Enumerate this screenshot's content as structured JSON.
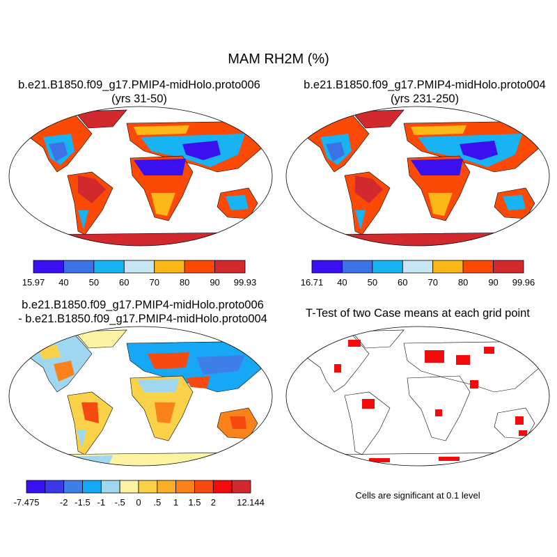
{
  "title": "MAM RH2M (%)",
  "panels": {
    "p1": {
      "title_line1": "b.e21.B1850.f09_g17.PMIP4-midHolo.proto006",
      "title_line2": "(yrs 31-50)"
    },
    "p2": {
      "title_line1": "b.e21.B1850.f09_g17.PMIP4-midHolo.proto004",
      "title_line2": "(yrs 231-250)"
    },
    "p3": {
      "title_line1": "b.e21.B1850.f09_g17.PMIP4-midHolo.proto006",
      "title_line2": "- b.e21.B1850.f09_g17.PMIP4-midHolo.proto004"
    },
    "p4": {
      "title_line1": "T-Test of two Case means at each grid point",
      "note": "Cells are significant at 0.1 level"
    }
  },
  "colorbars": {
    "cb1": {
      "colors": [
        "#3a0ff0",
        "#3c72e6",
        "#17b3f2",
        "#c6e6f6",
        "#fbb718",
        "#fa4a06",
        "#d1292e"
      ],
      "labels": [
        "15.97",
        "40",
        "50",
        "60",
        "70",
        "80",
        "90",
        "99.93"
      ]
    },
    "cb2": {
      "colors": [
        "#3a0ff0",
        "#3c72e6",
        "#17b3f2",
        "#c6e6f6",
        "#fbb718",
        "#fa4a06",
        "#d1292e"
      ],
      "labels": [
        "16.71",
        "40",
        "50",
        "60",
        "70",
        "80",
        "90",
        "99.96"
      ]
    },
    "cb3": {
      "colors": [
        "#3a0ff0",
        "#3a3ae8",
        "#3f7fe8",
        "#17a8f5",
        "#9fd6f0",
        "#fbf3a2",
        "#fad24a",
        "#fbae26",
        "#f9821a",
        "#f74a10",
        "#f40a0a",
        "#d1292e"
      ],
      "labels": [
        "-7.475",
        "-2",
        "-1.5",
        "-1",
        "-.5",
        "0",
        ".5",
        "1",
        "1.5",
        "2",
        "12.144"
      ]
    }
  }
}
